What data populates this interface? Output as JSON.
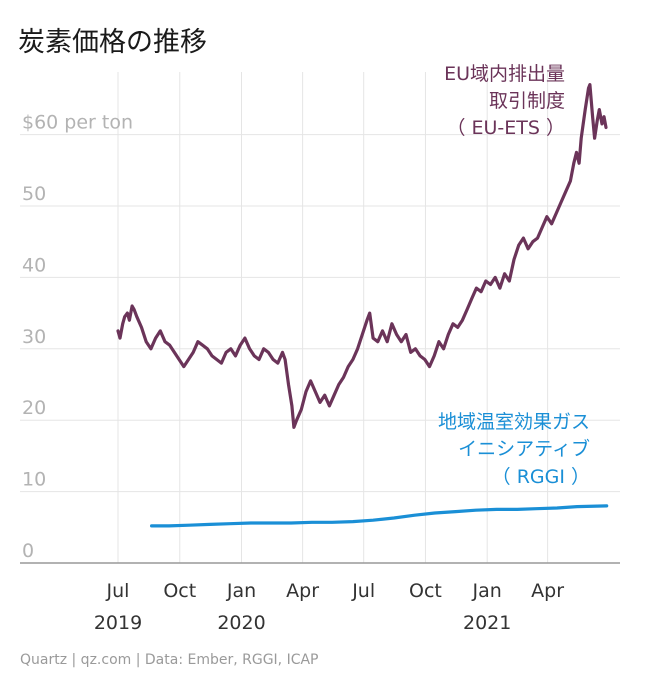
{
  "chart_data": {
    "type": "line",
    "title": "炭素価格の推移",
    "source": "Quartz | qz.com | Data: Ember, RGGI, ICAP",
    "y_unit_label": "$60 per ton",
    "ylim": [
      0,
      70
    ],
    "y_ticks": [
      0,
      10,
      20,
      30,
      40,
      50,
      60
    ],
    "y_tick_labels": [
      "0",
      "10",
      "20",
      "30",
      "40",
      "50",
      "$60 per ton"
    ],
    "xlim": [
      "2019-06-15",
      "2021-06-30"
    ],
    "x_ticks": [
      {
        "date": "2019-07-01",
        "label": "Jul",
        "year": "2019"
      },
      {
        "date": "2019-10-01",
        "label": "Oct",
        "year": ""
      },
      {
        "date": "2020-01-01",
        "label": "Jan",
        "year": "2020"
      },
      {
        "date": "2020-04-01",
        "label": "Apr",
        "year": ""
      },
      {
        "date": "2020-07-01",
        "label": "Jul",
        "year": ""
      },
      {
        "date": "2020-10-01",
        "label": "Oct",
        "year": ""
      },
      {
        "date": "2021-01-01",
        "label": "Jan",
        "year": "2021"
      },
      {
        "date": "2021-04-01",
        "label": "Apr",
        "year": ""
      }
    ],
    "grid": true,
    "series": [
      {
        "name": "EU域内排出量取引制度（EU-ETS）",
        "label_lines": [
          "EU域内排出量",
          "取引制度",
          "（ EU-ETS ）"
        ],
        "color": "#6b3459",
        "points": [
          [
            "2019-07-01",
            32.5
          ],
          [
            "2019-07-04",
            31.5
          ],
          [
            "2019-07-08",
            33.5
          ],
          [
            "2019-07-11",
            34.5
          ],
          [
            "2019-07-15",
            35.0
          ],
          [
            "2019-07-18",
            34.0
          ],
          [
            "2019-07-22",
            36.0
          ],
          [
            "2019-07-25",
            35.5
          ],
          [
            "2019-07-29",
            34.5
          ],
          [
            "2019-08-05",
            33.0
          ],
          [
            "2019-08-12",
            31.0
          ],
          [
            "2019-08-19",
            30.0
          ],
          [
            "2019-08-26",
            31.5
          ],
          [
            "2019-09-02",
            32.5
          ],
          [
            "2019-09-09",
            31.0
          ],
          [
            "2019-09-16",
            30.5
          ],
          [
            "2019-09-23",
            29.5
          ],
          [
            "2019-09-30",
            28.5
          ],
          [
            "2019-10-07",
            27.5
          ],
          [
            "2019-10-14",
            28.5
          ],
          [
            "2019-10-21",
            29.5
          ],
          [
            "2019-10-28",
            31.0
          ],
          [
            "2019-11-04",
            30.5
          ],
          [
            "2019-11-11",
            30.0
          ],
          [
            "2019-11-18",
            29.0
          ],
          [
            "2019-11-25",
            28.5
          ],
          [
            "2019-12-02",
            28.0
          ],
          [
            "2019-12-09",
            29.5
          ],
          [
            "2019-12-16",
            30.0
          ],
          [
            "2019-12-23",
            29.0
          ],
          [
            "2019-12-30",
            30.5
          ],
          [
            "2020-01-06",
            31.5
          ],
          [
            "2020-01-13",
            30.0
          ],
          [
            "2020-01-20",
            29.0
          ],
          [
            "2020-01-27",
            28.5
          ],
          [
            "2020-02-03",
            30.0
          ],
          [
            "2020-02-10",
            29.5
          ],
          [
            "2020-02-17",
            28.5
          ],
          [
            "2020-02-24",
            28.0
          ],
          [
            "2020-03-02",
            29.5
          ],
          [
            "2020-03-06",
            28.5
          ],
          [
            "2020-03-11",
            25.0
          ],
          [
            "2020-03-16",
            22.0
          ],
          [
            "2020-03-19",
            19.0
          ],
          [
            "2020-03-23",
            20.0
          ],
          [
            "2020-03-30",
            21.5
          ],
          [
            "2020-04-06",
            24.0
          ],
          [
            "2020-04-13",
            25.5
          ],
          [
            "2020-04-20",
            24.0
          ],
          [
            "2020-04-27",
            22.5
          ],
          [
            "2020-05-04",
            23.5
          ],
          [
            "2020-05-11",
            22.0
          ],
          [
            "2020-05-18",
            23.5
          ],
          [
            "2020-05-25",
            25.0
          ],
          [
            "2020-06-01",
            26.0
          ],
          [
            "2020-06-08",
            27.5
          ],
          [
            "2020-06-15",
            28.5
          ],
          [
            "2020-06-22",
            30.0
          ],
          [
            "2020-06-29",
            32.0
          ],
          [
            "2020-07-06",
            34.0
          ],
          [
            "2020-07-10",
            35.0
          ],
          [
            "2020-07-15",
            31.5
          ],
          [
            "2020-07-22",
            31.0
          ],
          [
            "2020-07-29",
            32.5
          ],
          [
            "2020-08-05",
            31.0
          ],
          [
            "2020-08-12",
            33.5
          ],
          [
            "2020-08-19",
            32.0
          ],
          [
            "2020-08-26",
            31.0
          ],
          [
            "2020-09-02",
            32.0
          ],
          [
            "2020-09-09",
            29.5
          ],
          [
            "2020-09-16",
            30.0
          ],
          [
            "2020-09-23",
            29.0
          ],
          [
            "2020-09-30",
            28.5
          ],
          [
            "2020-10-07",
            27.5
          ],
          [
            "2020-10-14",
            29.0
          ],
          [
            "2020-10-21",
            31.0
          ],
          [
            "2020-10-28",
            30.0
          ],
          [
            "2020-11-04",
            32.0
          ],
          [
            "2020-11-11",
            33.5
          ],
          [
            "2020-11-18",
            33.0
          ],
          [
            "2020-11-25",
            34.0
          ],
          [
            "2020-12-02",
            35.5
          ],
          [
            "2020-12-09",
            37.0
          ],
          [
            "2020-12-16",
            38.5
          ],
          [
            "2020-12-23",
            38.0
          ],
          [
            "2020-12-30",
            39.5
          ],
          [
            "2021-01-06",
            39.0
          ],
          [
            "2021-01-13",
            40.0
          ],
          [
            "2021-01-20",
            38.5
          ],
          [
            "2021-01-27",
            40.5
          ],
          [
            "2021-02-03",
            39.5
          ],
          [
            "2021-02-10",
            42.5
          ],
          [
            "2021-02-17",
            44.5
          ],
          [
            "2021-02-24",
            45.5
          ],
          [
            "2021-03-03",
            44.0
          ],
          [
            "2021-03-10",
            45.0
          ],
          [
            "2021-03-17",
            45.5
          ],
          [
            "2021-03-24",
            47.0
          ],
          [
            "2021-03-31",
            48.5
          ],
          [
            "2021-04-07",
            47.5
          ],
          [
            "2021-04-14",
            49.0
          ],
          [
            "2021-04-21",
            50.5
          ],
          [
            "2021-04-28",
            52.0
          ],
          [
            "2021-05-05",
            53.5
          ],
          [
            "2021-05-10",
            56.0
          ],
          [
            "2021-05-14",
            57.5
          ],
          [
            "2021-05-18",
            56.0
          ],
          [
            "2021-05-21",
            59.5
          ],
          [
            "2021-05-24",
            61.5
          ],
          [
            "2021-05-27",
            63.5
          ],
          [
            "2021-06-01",
            66.5
          ],
          [
            "2021-06-03",
            67.0
          ],
          [
            "2021-06-07",
            62.5
          ],
          [
            "2021-06-10",
            59.5
          ],
          [
            "2021-06-14",
            62.0
          ],
          [
            "2021-06-17",
            63.5
          ],
          [
            "2021-06-21",
            61.5
          ],
          [
            "2021-06-24",
            62.5
          ],
          [
            "2021-06-27",
            61.0
          ]
        ]
      },
      {
        "name": "地域温室効果ガスイニシアティブ（RGGI）",
        "label_lines": [
          "地域温室効果ガス",
          "イニシアティブ",
          "（ RGGI ）"
        ],
        "color": "#1a8fd6",
        "points": [
          [
            "2019-08-20",
            5.2
          ],
          [
            "2019-09-15",
            5.2
          ],
          [
            "2019-10-15",
            5.3
          ],
          [
            "2019-11-15",
            5.4
          ],
          [
            "2019-12-15",
            5.5
          ],
          [
            "2020-01-15",
            5.6
          ],
          [
            "2020-02-15",
            5.6
          ],
          [
            "2020-03-15",
            5.6
          ],
          [
            "2020-04-15",
            5.7
          ],
          [
            "2020-05-15",
            5.7
          ],
          [
            "2020-06-15",
            5.8
          ],
          [
            "2020-07-15",
            6.0
          ],
          [
            "2020-08-15",
            6.3
          ],
          [
            "2020-09-15",
            6.7
          ],
          [
            "2020-10-15",
            7.0
          ],
          [
            "2020-11-15",
            7.2
          ],
          [
            "2020-12-15",
            7.4
          ],
          [
            "2021-01-15",
            7.5
          ],
          [
            "2021-02-15",
            7.5
          ],
          [
            "2021-03-15",
            7.6
          ],
          [
            "2021-04-15",
            7.7
          ],
          [
            "2021-05-15",
            7.9
          ],
          [
            "2021-06-28",
            8.0
          ]
        ]
      }
    ]
  },
  "colors": {
    "eu_ets": "#6b3459",
    "rggi": "#1a8fd6",
    "grid": "#e5e5e5",
    "axis": "#999999"
  }
}
